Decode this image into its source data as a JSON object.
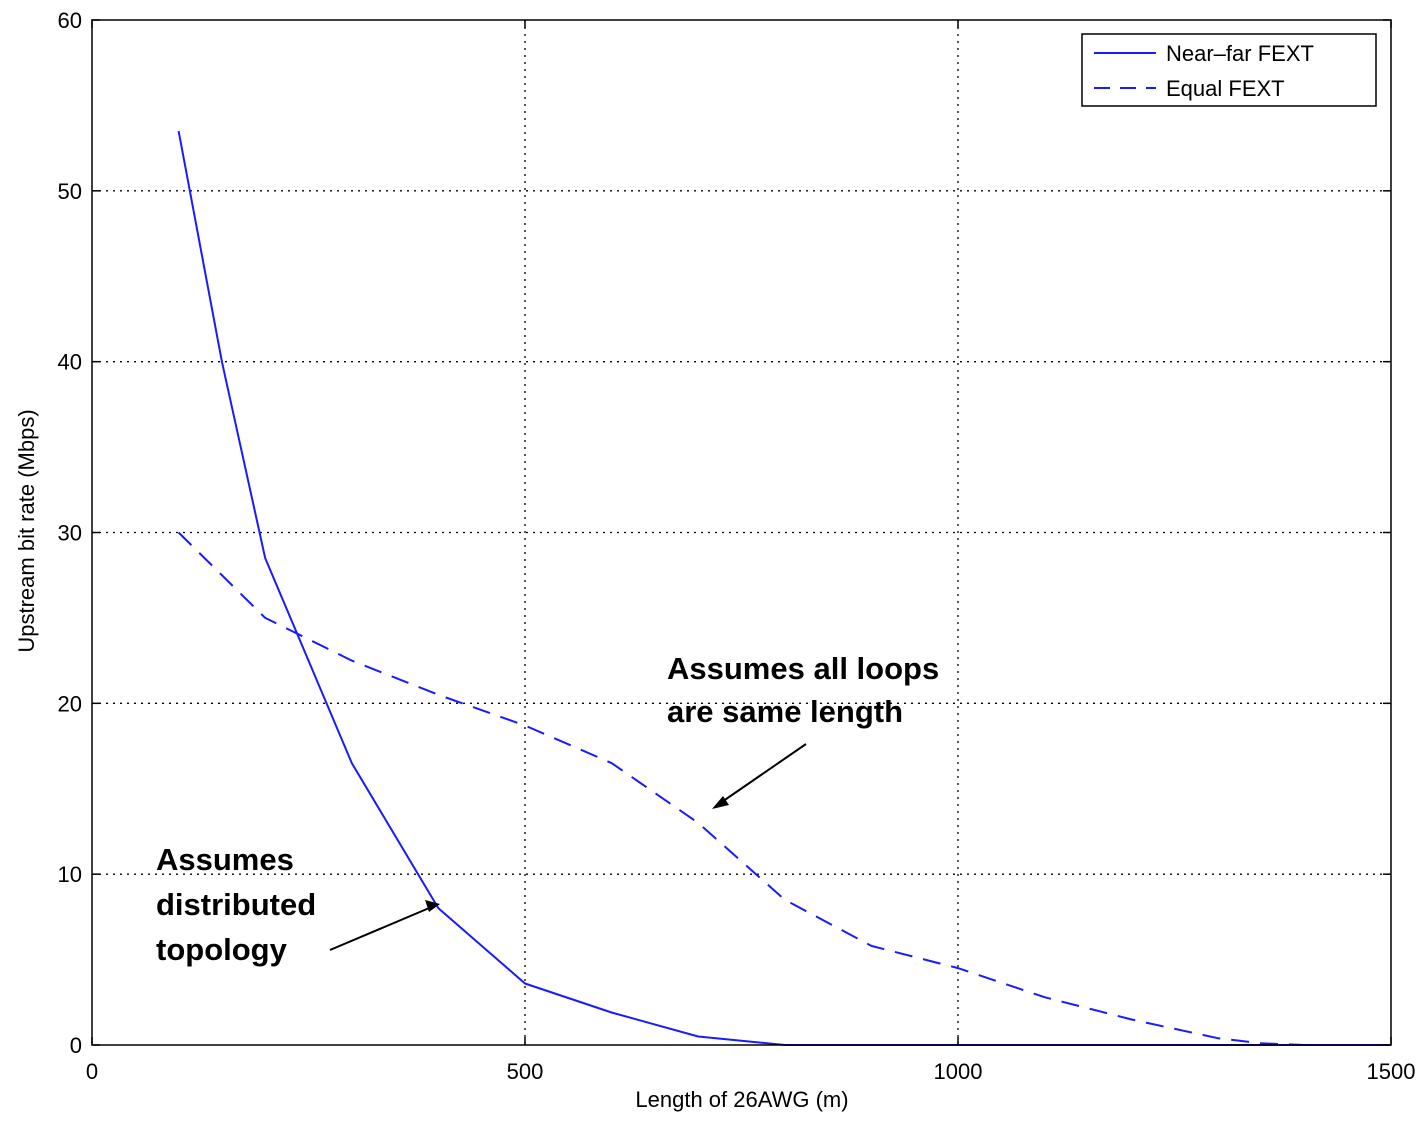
{
  "chart_data": {
    "type": "line",
    "xlabel": "Length of 26AWG (m)",
    "ylabel": "Upstream bit rate (Mbps)",
    "xlim": [
      0,
      1500
    ],
    "ylim": [
      0,
      60
    ],
    "xticks": [
      0,
      500,
      1000,
      1500
    ],
    "yticks": [
      0,
      10,
      20,
      30,
      40,
      50,
      60
    ],
    "grid": true,
    "legend_position": "top-right",
    "series": [
      {
        "name": "Near–far FEXT",
        "style": "solid",
        "color": "#1a1aff",
        "x": [
          100,
          150,
          200,
          300,
          400,
          500,
          600,
          700,
          800,
          900,
          1000,
          1100,
          1200,
          1300,
          1400,
          1500
        ],
        "y": [
          53.5,
          40,
          28.5,
          16.5,
          8,
          3.6,
          1.9,
          0.5,
          0,
          0,
          0,
          0,
          0,
          0,
          0,
          0
        ]
      },
      {
        "name": "Equal FEXT",
        "style": "dashed",
        "color": "#1a1aff",
        "x": [
          100,
          200,
          300,
          400,
          500,
          600,
          700,
          800,
          900,
          1000,
          1100,
          1200,
          1300,
          1350,
          1400,
          1500
        ],
        "y": [
          30,
          25,
          22.5,
          20.5,
          18.7,
          16.5,
          13,
          8.5,
          5.8,
          4.5,
          2.8,
          1.5,
          0.4,
          0.1,
          0,
          0
        ]
      }
    ],
    "annotations": [
      {
        "lines": [
          "Assumes all loops",
          "are same length"
        ]
      },
      {
        "lines": [
          "Assumes",
          "distributed",
          "topology"
        ]
      }
    ]
  }
}
